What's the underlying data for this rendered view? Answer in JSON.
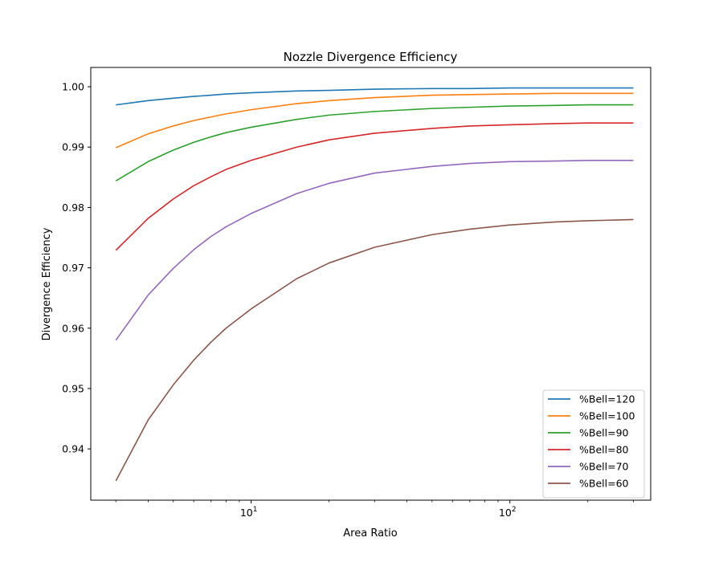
{
  "chart_data": {
    "type": "line",
    "title": "Nozzle Divergence Efficiency",
    "xlabel": "Area Ratio",
    "ylabel": "Divergence Efficiency",
    "xscale": "log",
    "xlim": [
      2.4,
      350
    ],
    "ylim": [
      0.9315,
      1.0032
    ],
    "x_ticks": [
      {
        "value": 10,
        "base": "10",
        "exp": "1"
      },
      {
        "value": 100,
        "base": "10",
        "exp": "2"
      }
    ],
    "y_ticks": [
      {
        "value": 0.94,
        "label": "0.94"
      },
      {
        "value": 0.95,
        "label": "0.95"
      },
      {
        "value": 0.96,
        "label": "0.96"
      },
      {
        "value": 0.97,
        "label": "0.97"
      },
      {
        "value": 0.98,
        "label": "0.98"
      },
      {
        "value": 0.99,
        "label": "0.99"
      },
      {
        "value": 1.0,
        "label": "1.00"
      }
    ],
    "grid": false,
    "legend_position": "lower-right",
    "x": [
      3,
      4,
      5,
      6,
      7,
      8,
      10,
      15,
      20,
      30,
      50,
      70,
      100,
      150,
      200,
      300
    ],
    "series": [
      {
        "name": "%Bell=120",
        "color": "#1f77b4",
        "values": [
          0.997,
          0.9977,
          0.9981,
          0.9984,
          0.9986,
          0.9988,
          0.999,
          0.9993,
          0.9994,
          0.9996,
          0.9997,
          0.9997,
          0.9998,
          0.9998,
          0.9998,
          0.9998
        ]
      },
      {
        "name": "%Bell=100",
        "color": "#ff7f0e",
        "values": [
          0.9899,
          0.9922,
          0.9935,
          0.9944,
          0.995,
          0.9955,
          0.9962,
          0.9972,
          0.9977,
          0.9982,
          0.9986,
          0.9987,
          0.9988,
          0.9989,
          0.9989,
          0.9989
        ]
      },
      {
        "name": "%Bell=90",
        "color": "#2ca02c",
        "values": [
          0.9844,
          0.9876,
          0.9895,
          0.9908,
          0.9917,
          0.9924,
          0.9933,
          0.9946,
          0.9953,
          0.9959,
          0.9964,
          0.9966,
          0.9968,
          0.9969,
          0.997,
          0.997
        ]
      },
      {
        "name": "%Bell=80",
        "color": "#d62728",
        "values": [
          0.9729,
          0.9782,
          0.9814,
          0.9836,
          0.9851,
          0.9863,
          0.9878,
          0.99,
          0.9912,
          0.9923,
          0.9931,
          0.9935,
          0.9937,
          0.9939,
          0.994,
          0.994
        ]
      },
      {
        "name": "%Bell=70",
        "color": "#9467bd",
        "values": [
          0.958,
          0.9655,
          0.9699,
          0.973,
          0.9752,
          0.9768,
          0.979,
          0.9823,
          0.984,
          0.9857,
          0.9868,
          0.9873,
          0.9876,
          0.9877,
          0.9878,
          0.9878
        ]
      },
      {
        "name": "%Bell=60",
        "color": "#8c564b",
        "values": [
          0.9347,
          0.9448,
          0.9506,
          0.9547,
          0.9577,
          0.96,
          0.9632,
          0.9682,
          0.9708,
          0.9734,
          0.9755,
          0.9764,
          0.9771,
          0.9776,
          0.9778,
          0.978
        ]
      }
    ]
  }
}
